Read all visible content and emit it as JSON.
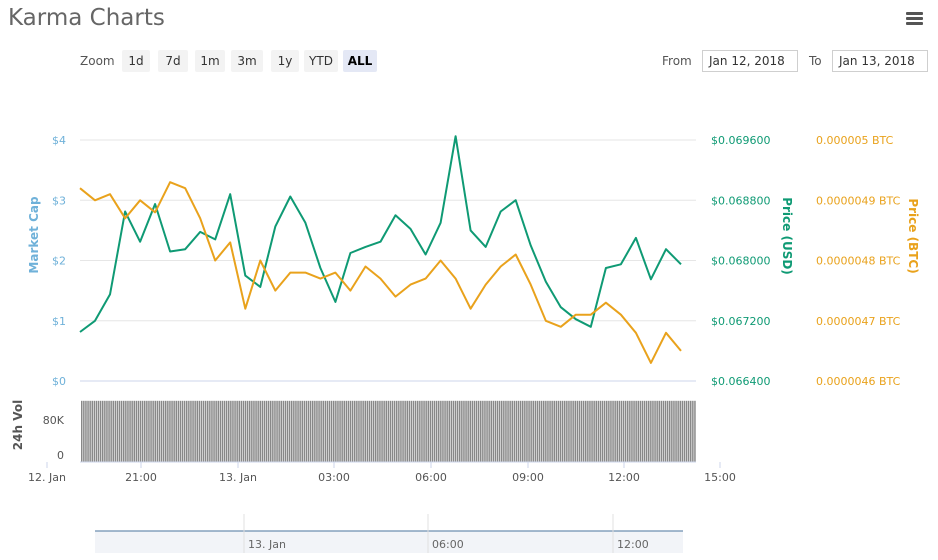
{
  "title": "Karma Charts",
  "menu_icon": "hamburger-icon",
  "zoom": {
    "label": "Zoom",
    "buttons": [
      "1d",
      "7d",
      "1m",
      "3m",
      "1y",
      "YTD",
      "ALL"
    ],
    "active": "ALL"
  },
  "range": {
    "from_label": "From",
    "from_value": "Jan 12, 2018",
    "to_label": "To",
    "to_value": "Jan 13, 2018"
  },
  "colors": {
    "market_cap": "#6fb1d9",
    "price_usd": "#0f9a74",
    "price_btc": "#e9a21c",
    "volume": "#888888"
  },
  "chart_data": {
    "type": "line",
    "x_tick_labels": [
      "12. Jan",
      "21:00",
      "13. Jan",
      "03:00",
      "06:00",
      "09:00",
      "12:00",
      "15:00"
    ],
    "axes": {
      "market_cap": {
        "label": "Market Cap",
        "ticks": [
          "$0",
          "$1",
          "$2",
          "$3",
          "$4"
        ],
        "range": [
          0,
          4
        ]
      },
      "price_usd": {
        "label": "Price (USD)",
        "ticks": [
          "$0.066400",
          "$0.067200",
          "$0.068000",
          "$0.068800",
          "$0.069600"
        ],
        "range": [
          0.0664,
          0.0696
        ]
      },
      "price_btc": {
        "label": "Price (BTC)",
        "ticks": [
          "0.0000046 BTC",
          "0.0000047 BTC",
          "0.0000048 BTC",
          "0.0000049 BTC",
          "0.000005 BTC"
        ],
        "range": [
          4.6e-06,
          5e-06
        ]
      },
      "volume": {
        "label": "24h Vol",
        "ticks": [
          "80K",
          "0"
        ]
      }
    },
    "hours_from_start": [
      0,
      0.5,
      1,
      1.5,
      2,
      2.5,
      3,
      3.5,
      4,
      4.5,
      5,
      5.5,
      6,
      6.5,
      7,
      7.5,
      8,
      8.5,
      9,
      9.5,
      10,
      10.5,
      11,
      11.5,
      12,
      12.5,
      13,
      13.5,
      14,
      14.5,
      15,
      15.5,
      16,
      16.5,
      17,
      17.5,
      18,
      18.5,
      19,
      19.5,
      20
    ],
    "series": [
      {
        "name": "Price (USD)",
        "axis": "price_usd",
        "values": [
          0.06705,
          0.0672,
          0.06755,
          0.06865,
          0.06825,
          0.06875,
          0.06812,
          0.06815,
          0.06838,
          0.06828,
          0.06888,
          0.0678,
          0.06765,
          0.06845,
          0.06885,
          0.0685,
          0.0679,
          0.06745,
          0.0681,
          0.06818,
          0.06825,
          0.0686,
          0.06842,
          0.06808,
          0.0685,
          0.06965,
          0.0684,
          0.06818,
          0.06865,
          0.0688,
          0.0682,
          0.06772,
          0.06738,
          0.06722,
          0.06712,
          0.0679,
          0.06795,
          0.0683,
          0.06775,
          0.06815,
          0.06795
        ]
      },
      {
        "name": "Price (BTC)",
        "axis": "price_btc",
        "values": [
          4.92e-06,
          4.9e-06,
          4.91e-06,
          4.87e-06,
          4.9e-06,
          4.88e-06,
          4.93e-06,
          4.92e-06,
          4.87e-06,
          4.8e-06,
          4.83e-06,
          4.72e-06,
          4.8e-06,
          4.75e-06,
          4.78e-06,
          4.78e-06,
          4.77e-06,
          4.78e-06,
          4.75e-06,
          4.79e-06,
          4.77e-06,
          4.74e-06,
          4.76e-06,
          4.77e-06,
          4.8e-06,
          4.77e-06,
          4.72e-06,
          4.76e-06,
          4.79e-06,
          4.81e-06,
          4.76e-06,
          4.7e-06,
          4.69e-06,
          4.71e-06,
          4.71e-06,
          4.73e-06,
          4.71e-06,
          4.68e-06,
          4.63e-06,
          4.68e-06,
          4.65e-06
        ]
      }
    ],
    "volume_level": 0.9
  }
}
